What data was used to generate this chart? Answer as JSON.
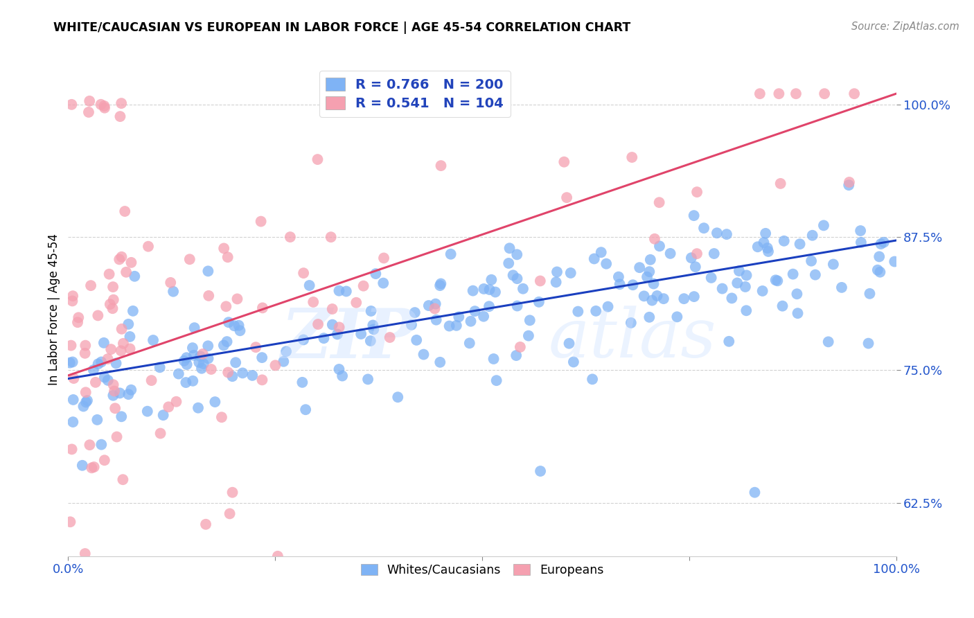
{
  "title": "WHITE/CAUCASIAN VS EUROPEAN IN LABOR FORCE | AGE 45-54 CORRELATION CHART",
  "source": "Source: ZipAtlas.com",
  "ylabel": "In Labor Force | Age 45-54",
  "yticks": [
    0.625,
    0.75,
    0.875,
    1.0
  ],
  "ytick_labels": [
    "62.5%",
    "75.0%",
    "87.5%",
    "100.0%"
  ],
  "xrange": [
    0.0,
    1.0
  ],
  "yrange": [
    0.575,
    1.04
  ],
  "blue_R": 0.766,
  "blue_N": 200,
  "pink_R": 0.541,
  "pink_N": 104,
  "blue_color": "#7fb3f5",
  "pink_color": "#f5a0b0",
  "blue_line_color": "#1a3fbf",
  "pink_line_color": "#e0446a",
  "legend_label_blue": "Whites/Caucasians",
  "legend_label_pink": "Europeans",
  "blue_intercept": 0.742,
  "blue_slope": 0.13,
  "pink_intercept": 0.745,
  "pink_slope": 0.265
}
